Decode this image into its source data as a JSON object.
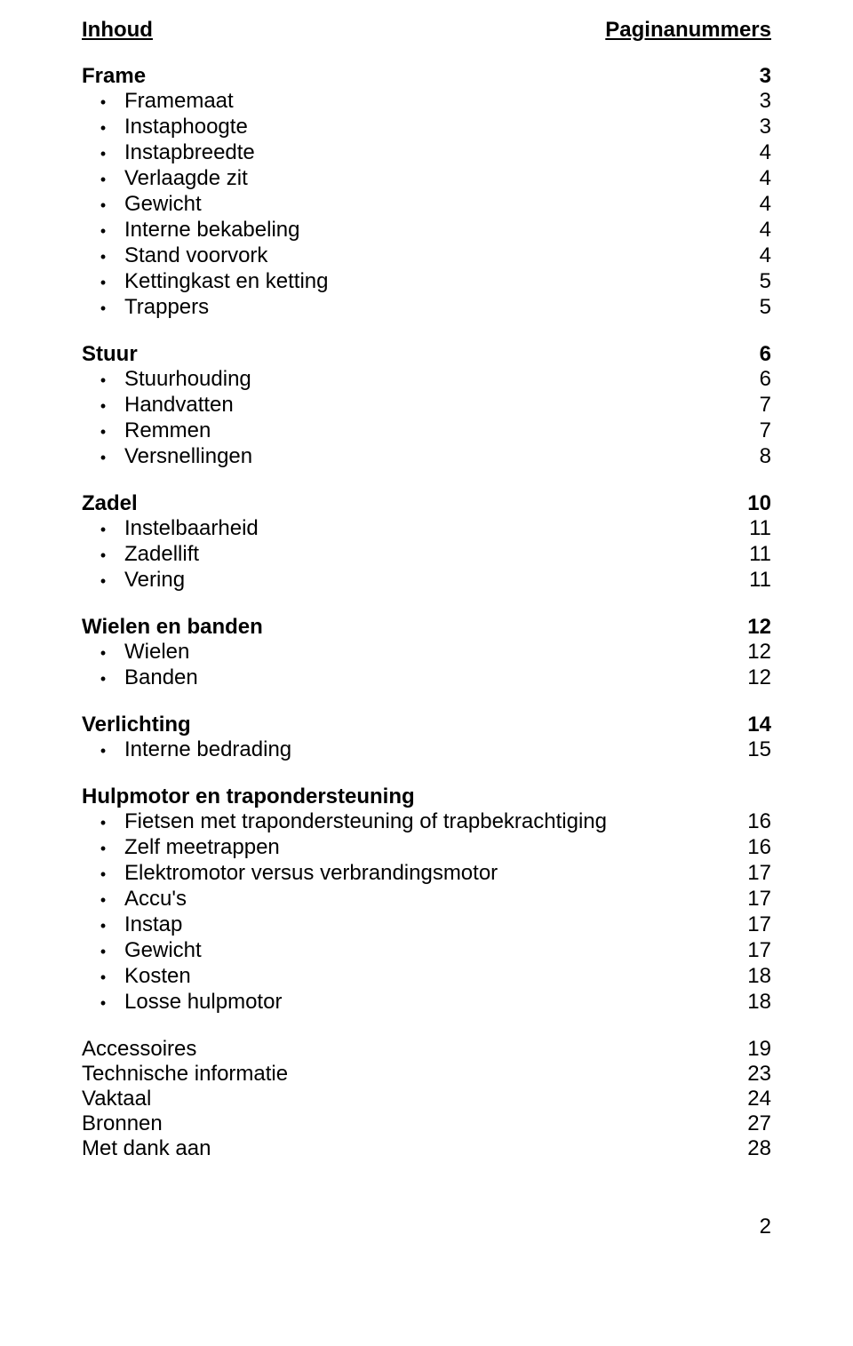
{
  "header": {
    "left": "Inhoud",
    "right": "Paginanummers"
  },
  "bullet": "•",
  "sections": [
    {
      "title": "Frame",
      "page": "3",
      "items": [
        {
          "label": "Framemaat",
          "page": "3"
        },
        {
          "label": "Instaphoogte",
          "page": "3"
        },
        {
          "label": "Instapbreedte",
          "page": "4"
        },
        {
          "label": "Verlaagde zit",
          "page": "4"
        },
        {
          "label": "Gewicht",
          "page": "4"
        },
        {
          "label": "Interne bekabeling",
          "page": "4"
        },
        {
          "label": "Stand voorvork",
          "page": "4"
        },
        {
          "label": "Kettingkast en ketting",
          "page": "5"
        },
        {
          "label": "Trappers",
          "page": "5"
        }
      ]
    },
    {
      "title": "Stuur",
      "page": "6",
      "items": [
        {
          "label": "Stuurhouding",
          "page": "6"
        },
        {
          "label": "Handvatten",
          "page": "7"
        },
        {
          "label": "Remmen",
          "page": "7"
        },
        {
          "label": "Versnellingen",
          "page": "8"
        }
      ]
    },
    {
      "title": "Zadel",
      "page": "10",
      "items": [
        {
          "label": "Instelbaarheid",
          "page": "11"
        },
        {
          "label": "Zadellift",
          "page": "11"
        },
        {
          "label": "Vering",
          "page": "11"
        }
      ]
    },
    {
      "title": "Wielen en banden",
      "page": "12",
      "items": [
        {
          "label": "Wielen",
          "page": "12"
        },
        {
          "label": "Banden",
          "page": "12"
        }
      ]
    },
    {
      "title": "Verlichting",
      "page": "14",
      "items": [
        {
          "label": "Interne bedrading",
          "page": "15"
        }
      ]
    },
    {
      "title": "Hulpmotor en trapondersteuning",
      "page": "",
      "items": [
        {
          "label": "Fietsen met trapondersteuning of trapbekrachtiging",
          "page": "16"
        },
        {
          "label": "Zelf meetrappen",
          "page": "16"
        },
        {
          "label": "Elektromotor versus verbrandingsmotor",
          "page": "17"
        },
        {
          "label": "Accu's",
          "page": "17"
        },
        {
          "label": "Instap",
          "page": "17"
        },
        {
          "label": "Gewicht",
          "page": "17"
        },
        {
          "label": "Kosten",
          "page": "18"
        },
        {
          "label": "Losse hulpmotor",
          "page": "18"
        }
      ]
    }
  ],
  "plain": [
    {
      "label": "Accessoires",
      "page": "19"
    },
    {
      "label": "Technische informatie",
      "page": "23"
    },
    {
      "label": "Vaktaal",
      "page": "24"
    },
    {
      "label": "Bronnen",
      "page": "27"
    },
    {
      "label": "Met dank aan",
      "page": "28"
    }
  ],
  "pageNumber": "2"
}
